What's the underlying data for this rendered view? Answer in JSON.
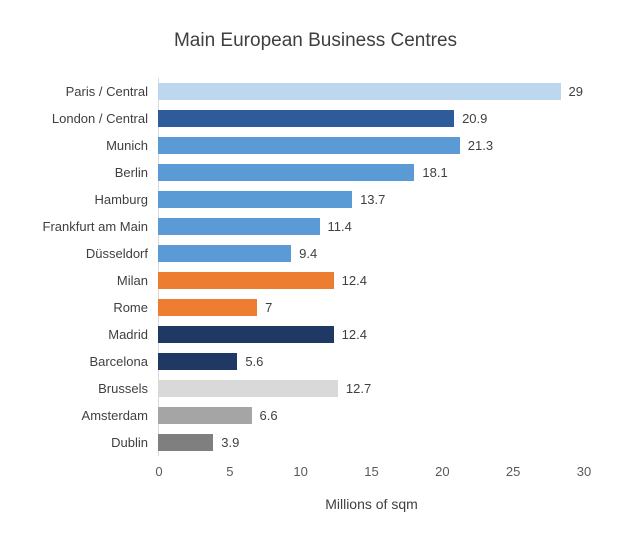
{
  "chart_data": {
    "type": "bar",
    "orientation": "horizontal",
    "title": "Main European Business Centres",
    "xlabel": "Millions of sqm",
    "xlim": [
      0,
      30
    ],
    "x_ticks": [
      "0",
      "5",
      "10",
      "15",
      "20",
      "25",
      "30"
    ],
    "grid": false,
    "legend": false,
    "series": [
      {
        "label": "Paris / Central",
        "value": 29,
        "value_label": "29",
        "color": "#BDD7EE"
      },
      {
        "label": "London / Central",
        "value": 20.9,
        "value_label": "20.9",
        "color": "#2E5B9A"
      },
      {
        "label": "Munich",
        "value": 21.3,
        "value_label": "21.3",
        "color": "#5B9BD5"
      },
      {
        "label": "Berlin",
        "value": 18.1,
        "value_label": "18.1",
        "color": "#5B9BD5"
      },
      {
        "label": "Hamburg",
        "value": 13.7,
        "value_label": "13.7",
        "color": "#5B9BD5"
      },
      {
        "label": "Frankfurt am Main",
        "value": 11.4,
        "value_label": "11.4",
        "color": "#5B9BD5"
      },
      {
        "label": "Düsseldorf",
        "value": 9.4,
        "value_label": "9.4",
        "color": "#5B9BD5"
      },
      {
        "label": "Milan",
        "value": 12.4,
        "value_label": "12.4",
        "color": "#ED7D31"
      },
      {
        "label": "Rome",
        "value": 7,
        "value_label": "7",
        "color": "#ED7D31"
      },
      {
        "label": "Madrid",
        "value": 12.4,
        "value_label": "12.4",
        "color": "#1F3864"
      },
      {
        "label": "Barcelona",
        "value": 5.6,
        "value_label": "5.6",
        "color": "#1F3864"
      },
      {
        "label": "Brussels",
        "value": 12.7,
        "value_label": "12.7",
        "color": "#D9D9D9"
      },
      {
        "label": "Amsterdam",
        "value": 6.6,
        "value_label": "6.6",
        "color": "#A5A5A5"
      },
      {
        "label": "Dublin",
        "value": 3.9,
        "value_label": "3.9",
        "color": "#7F7F7F"
      }
    ]
  }
}
